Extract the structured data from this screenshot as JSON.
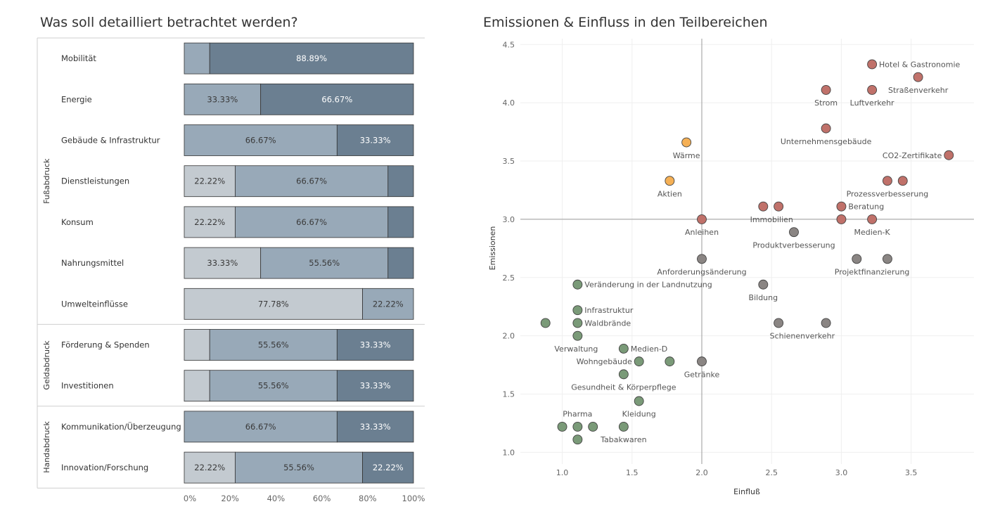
{
  "chart_data": [
    {
      "type": "bar",
      "title": "Was soll detailliert betrachtet werden?",
      "x_ticks": [
        "0%",
        "20%",
        "40%",
        "60%",
        "80%",
        "100%"
      ],
      "groups": [
        {
          "name": "Fußabdruck",
          "rows": [
            0,
            1,
            2,
            3,
            4,
            5,
            6
          ]
        },
        {
          "name": "Geldabdruck",
          "rows": [
            7,
            8
          ]
        },
        {
          "name": "Handabdruck",
          "rows": [
            9,
            10
          ]
        }
      ],
      "colors": [
        "#c3cad0",
        "#98a9b8",
        "#6b7f91"
      ],
      "rows": [
        {
          "label": "Mobilität",
          "segments": [
            {
              "value": 11.11,
              "color": 1,
              "text": ""
            },
            {
              "value": 88.89,
              "color": 2,
              "text": "88.89%"
            }
          ]
        },
        {
          "label": "Energie",
          "segments": [
            {
              "value": 33.33,
              "color": 1,
              "text": "33.33%"
            },
            {
              "value": 66.67,
              "color": 2,
              "text": "66.67%"
            }
          ]
        },
        {
          "label": "Gebäude & Infrastruktur",
          "segments": [
            {
              "value": 66.67,
              "color": 1,
              "text": "66.67%"
            },
            {
              "value": 33.33,
              "color": 2,
              "text": "33.33%"
            }
          ]
        },
        {
          "label": "Dienstleistungen",
          "segments": [
            {
              "value": 22.22,
              "color": 0,
              "text": "22.22%"
            },
            {
              "value": 66.67,
              "color": 1,
              "text": "66.67%"
            },
            {
              "value": 11.11,
              "color": 2,
              "text": ""
            }
          ]
        },
        {
          "label": "Konsum",
          "segments": [
            {
              "value": 22.22,
              "color": 0,
              "text": "22.22%"
            },
            {
              "value": 66.67,
              "color": 1,
              "text": "66.67%"
            },
            {
              "value": 11.11,
              "color": 2,
              "text": ""
            }
          ]
        },
        {
          "label": "Nahrungsmittel",
          "segments": [
            {
              "value": 33.33,
              "color": 0,
              "text": "33.33%"
            },
            {
              "value": 55.56,
              "color": 1,
              "text": "55.56%"
            },
            {
              "value": 11.11,
              "color": 2,
              "text": ""
            }
          ]
        },
        {
          "label": "Umwelteinflüsse",
          "segments": [
            {
              "value": 77.78,
              "color": 0,
              "text": "77.78%"
            },
            {
              "value": 22.22,
              "color": 1,
              "text": "22.22%"
            }
          ]
        },
        {
          "label": "Förderung & Spenden",
          "segments": [
            {
              "value": 11.11,
              "color": 0,
              "text": ""
            },
            {
              "value": 55.56,
              "color": 1,
              "text": "55.56%"
            },
            {
              "value": 33.33,
              "color": 2,
              "text": "33.33%"
            }
          ]
        },
        {
          "label": "Investitionen",
          "segments": [
            {
              "value": 11.11,
              "color": 0,
              "text": ""
            },
            {
              "value": 55.56,
              "color": 1,
              "text": "55.56%"
            },
            {
              "value": 33.33,
              "color": 2,
              "text": "33.33%"
            }
          ]
        },
        {
          "label": "Kommunikation/Überzeugung",
          "segments": [
            {
              "value": 66.67,
              "color": 1,
              "text": "66.67%"
            },
            {
              "value": 33.33,
              "color": 2,
              "text": "33.33%"
            }
          ]
        },
        {
          "label": "Innovation/Forschung",
          "segments": [
            {
              "value": 22.22,
              "color": 0,
              "text": "22.22%"
            },
            {
              "value": 55.56,
              "color": 1,
              "text": "55.56%"
            },
            {
              "value": 22.22,
              "color": 2,
              "text": "22.22%"
            }
          ]
        }
      ]
    },
    {
      "type": "scatter",
      "title": "Emissionen & Einfluss in den Teilbereichen",
      "xlabel": "Einfluß",
      "ylabel": "Emissionen",
      "xlim": [
        0.7,
        3.95
      ],
      "ylim": [
        0.9,
        4.55
      ],
      "x_ticks": [
        1.0,
        1.5,
        2.0,
        2.5,
        3.0,
        3.5
      ],
      "y_ticks": [
        1.0,
        1.5,
        2.0,
        2.5,
        3.0,
        3.5,
        4.0,
        4.5
      ],
      "ref_x": 2.0,
      "ref_y": 3.0,
      "colors": {
        "red": "#c0716a",
        "orange": "#f5b055",
        "gray": "#8a8583",
        "green": "#7a9a78"
      },
      "points": [
        {
          "x": 3.22,
          "y": 4.33,
          "c": "red"
        },
        {
          "x": 3.55,
          "y": 4.22,
          "c": "red"
        },
        {
          "x": 2.89,
          "y": 4.11,
          "c": "red"
        },
        {
          "x": 3.22,
          "y": 4.11,
          "c": "red"
        },
        {
          "x": 2.89,
          "y": 3.78,
          "c": "red"
        },
        {
          "x": 3.77,
          "y": 3.55,
          "c": "red"
        },
        {
          "x": 3.33,
          "y": 3.33,
          "c": "red"
        },
        {
          "x": 3.44,
          "y": 3.33,
          "c": "red"
        },
        {
          "x": 2.44,
          "y": 3.11,
          "c": "red"
        },
        {
          "x": 2.55,
          "y": 3.11,
          "c": "red"
        },
        {
          "x": 3.0,
          "y": 3.11,
          "c": "red"
        },
        {
          "x": 2.0,
          "y": 3.0,
          "c": "red"
        },
        {
          "x": 3.0,
          "y": 3.0,
          "c": "red"
        },
        {
          "x": 3.22,
          "y": 3.0,
          "c": "red"
        },
        {
          "x": 1.89,
          "y": 3.66,
          "c": "orange"
        },
        {
          "x": 1.77,
          "y": 3.33,
          "c": "orange"
        },
        {
          "x": 2.66,
          "y": 2.89,
          "c": "gray"
        },
        {
          "x": 2.0,
          "y": 2.66,
          "c": "gray"
        },
        {
          "x": 3.11,
          "y": 2.66,
          "c": "gray"
        },
        {
          "x": 3.33,
          "y": 2.66,
          "c": "gray"
        },
        {
          "x": 2.44,
          "y": 2.44,
          "c": "gray"
        },
        {
          "x": 2.55,
          "y": 2.11,
          "c": "gray"
        },
        {
          "x": 2.89,
          "y": 2.11,
          "c": "gray"
        },
        {
          "x": 2.0,
          "y": 1.78,
          "c": "gray"
        },
        {
          "x": 1.11,
          "y": 2.44,
          "c": "green"
        },
        {
          "x": 1.11,
          "y": 2.22,
          "c": "green"
        },
        {
          "x": 0.88,
          "y": 2.11,
          "c": "green"
        },
        {
          "x": 1.11,
          "y": 2.11,
          "c": "green"
        },
        {
          "x": 1.11,
          "y": 2.0,
          "c": "green"
        },
        {
          "x": 1.44,
          "y": 1.89,
          "c": "green"
        },
        {
          "x": 1.55,
          "y": 1.78,
          "c": "green"
        },
        {
          "x": 1.77,
          "y": 1.78,
          "c": "green"
        },
        {
          "x": 1.44,
          "y": 1.67,
          "c": "green"
        },
        {
          "x": 1.55,
          "y": 1.44,
          "c": "green"
        },
        {
          "x": 1.0,
          "y": 1.22,
          "c": "green"
        },
        {
          "x": 1.11,
          "y": 1.22,
          "c": "green"
        },
        {
          "x": 1.22,
          "y": 1.22,
          "c": "green"
        },
        {
          "x": 1.44,
          "y": 1.22,
          "c": "green"
        },
        {
          "x": 1.11,
          "y": 1.11,
          "c": "green"
        }
      ],
      "labels": [
        {
          "text": "Hotel & Gastronomie",
          "x": 3.27,
          "y": 4.33,
          "anchor": "start"
        },
        {
          "text": "Straßenverkehr",
          "x": 3.55,
          "y": 4.11,
          "anchor": "middle"
        },
        {
          "text": "Strom",
          "x": 2.89,
          "y": 4.0,
          "anchor": "middle"
        },
        {
          "text": "Luftverkehr",
          "x": 3.22,
          "y": 4.0,
          "anchor": "middle"
        },
        {
          "text": "Unternehmensgebäude",
          "x": 2.89,
          "y": 3.67,
          "anchor": "middle"
        },
        {
          "text": "CO2-Zertifikate",
          "x": 3.72,
          "y": 3.55,
          "anchor": "end"
        },
        {
          "text": "Wärme",
          "x": 1.89,
          "y": 3.55,
          "anchor": "middle"
        },
        {
          "text": "Prozessverbesserung",
          "x": 3.33,
          "y": 3.22,
          "anchor": "middle"
        },
        {
          "text": "Aktien",
          "x": 1.77,
          "y": 3.22,
          "anchor": "middle"
        },
        {
          "text": "Beratung",
          "x": 3.05,
          "y": 3.11,
          "anchor": "start"
        },
        {
          "text": "Immobilien",
          "x": 2.5,
          "y": 3.0,
          "anchor": "middle"
        },
        {
          "text": "Anleihen",
          "x": 2.0,
          "y": 2.89,
          "anchor": "middle"
        },
        {
          "text": "Medien-K",
          "x": 3.22,
          "y": 2.89,
          "anchor": "middle"
        },
        {
          "text": "Produktverbesserung",
          "x": 2.66,
          "y": 2.78,
          "anchor": "middle"
        },
        {
          "text": "Anforderungsänderung",
          "x": 2.0,
          "y": 2.55,
          "anchor": "middle"
        },
        {
          "text": "Projektfinanzierung",
          "x": 3.22,
          "y": 2.55,
          "anchor": "middle"
        },
        {
          "text": "Veränderung in der Landnutzung",
          "x": 1.16,
          "y": 2.44,
          "anchor": "start"
        },
        {
          "text": "Bildung",
          "x": 2.44,
          "y": 2.33,
          "anchor": "middle"
        },
        {
          "text": "Infrastruktur",
          "x": 1.16,
          "y": 2.22,
          "anchor": "start"
        },
        {
          "text": "Waldbrände",
          "x": 1.16,
          "y": 2.11,
          "anchor": "start"
        },
        {
          "text": "Schienenverkehr",
          "x": 2.72,
          "y": 2.0,
          "anchor": "middle"
        },
        {
          "text": "Verwaltung",
          "x": 1.1,
          "y": 1.89,
          "anchor": "middle"
        },
        {
          "text": "Medien-D",
          "x": 1.49,
          "y": 1.89,
          "anchor": "start"
        },
        {
          "text": "Wohngebäude",
          "x": 1.5,
          "y": 1.78,
          "anchor": "end"
        },
        {
          "text": "Getränke",
          "x": 2.0,
          "y": 1.67,
          "anchor": "middle"
        },
        {
          "text": "Gesundheit & Körperpflege",
          "x": 1.44,
          "y": 1.56,
          "anchor": "middle"
        },
        {
          "text": "Kleidung",
          "x": 1.55,
          "y": 1.33,
          "anchor": "middle"
        },
        {
          "text": "Pharma",
          "x": 1.11,
          "y": 1.33,
          "anchor": "middle"
        },
        {
          "text": "Tabakwaren",
          "x": 1.44,
          "y": 1.11,
          "anchor": "middle"
        }
      ]
    }
  ]
}
